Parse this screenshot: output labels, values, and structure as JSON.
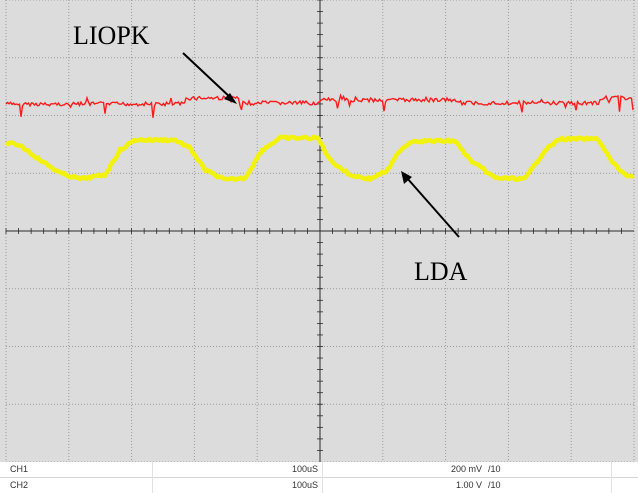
{
  "screen": {
    "background_color": "#dcdcdc",
    "grid_color": "#9a9a9a",
    "axis_color": "#2a2a2a",
    "divisions_x": 10,
    "divisions_y": 8,
    "subdivisions": 5
  },
  "channels": [
    {
      "name": "CH1",
      "timebase": "100uS",
      "scale": "200 mV",
      "per_div": "/10",
      "trace_color": "#ff1a1a"
    },
    {
      "name": "CH2",
      "timebase": "100uS",
      "scale": "1.00 V",
      "per_div": "/10",
      "trace_color": "#f2f20a"
    }
  ],
  "annotations": {
    "ch1_label": "LIOPK",
    "ch2_label": "LDA"
  }
}
